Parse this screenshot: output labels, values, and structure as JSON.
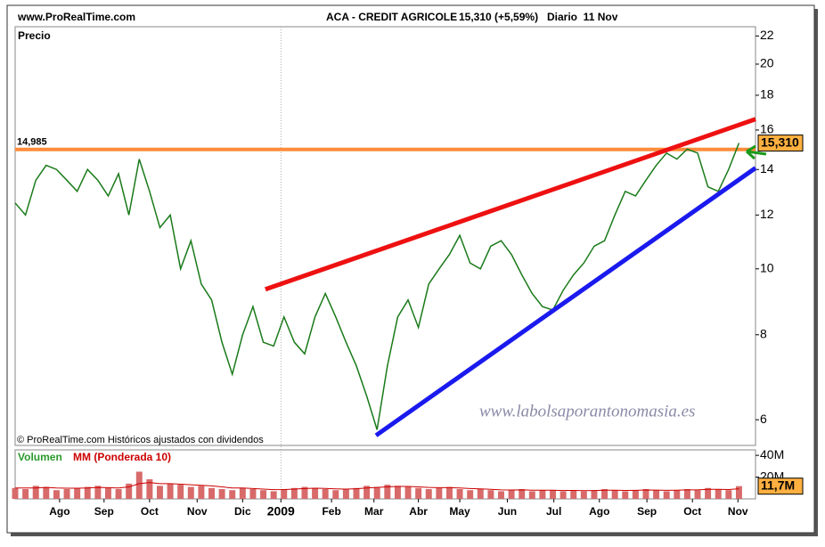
{
  "chart_data": [
    {
      "type": "line",
      "source": "www.ProRealTime.com",
      "title": "ACA - CREDIT AGRICOLE",
      "subtitle": "15,310 (+5,59%)",
      "period": "Diario  11 Nov",
      "y_label": "Precio",
      "copyright": "© ProRealTime.com Históricos ajustados con dividendos",
      "watermark": "www.labolsaporantonomasia.es",
      "log_scale": true,
      "xlim": [
        0,
        71.6
      ],
      "ylim": [
        5.5,
        22.7
      ],
      "yticks": [
        6,
        8,
        10,
        12,
        14,
        16,
        18,
        20,
        22
      ],
      "x": [
        0,
        1,
        2,
        3,
        4,
        5,
        6,
        7,
        8,
        9,
        10,
        11,
        12,
        13,
        14,
        15,
        16,
        17,
        18,
        19,
        20,
        21,
        22,
        23,
        24,
        25,
        26,
        27,
        28,
        29,
        30,
        31,
        32,
        33,
        34,
        35,
        36,
        37,
        38,
        39,
        40,
        41,
        42,
        43,
        44,
        45,
        46,
        47,
        48,
        49,
        50,
        51,
        52,
        53,
        54,
        55,
        56,
        57,
        58,
        59,
        60,
        61,
        62,
        63,
        64,
        65,
        66,
        67,
        68,
        69,
        70
      ],
      "series": [
        {
          "color": "#1a7a1a",
          "values": [
            12.5,
            12.0,
            13.5,
            14.2,
            14.0,
            13.5,
            13.0,
            14.0,
            13.5,
            12.8,
            13.8,
            12.0,
            14.5,
            13.0,
            11.5,
            12.0,
            10.0,
            11.0,
            9.5,
            9.0,
            7.8,
            7.0,
            8.0,
            8.8,
            7.8,
            7.7,
            8.5,
            7.8,
            7.5,
            8.5,
            9.2,
            8.5,
            7.8,
            7.2,
            6.5,
            5.8,
            7.2,
            8.5,
            9.0,
            8.2,
            9.5,
            10.0,
            10.5,
            11.2,
            10.2,
            10.0,
            10.8,
            11.0,
            10.5,
            9.8,
            9.2,
            8.8,
            8.7,
            9.3,
            9.8,
            10.2,
            10.8,
            11.0,
            12.0,
            13.0,
            12.8,
            13.5,
            14.2,
            14.8,
            14.5,
            15.0,
            14.8,
            13.2,
            13.0,
            14.0,
            15.31
          ]
        }
      ],
      "hlines": [
        {
          "value": 14.985,
          "label": "14,985",
          "color": "#ff8c3a"
        }
      ],
      "trendlines": [
        {
          "color": "#ee1111",
          "x": [
            24.2,
            71.6
          ],
          "y": [
            9.33,
            16.6
          ]
        },
        {
          "color": "#1a1aee",
          "x": [
            34.9,
            71.6
          ],
          "y": [
            5.69,
            14.07
          ]
        }
      ],
      "last_value_label": {
        "value": 15.31,
        "label": "15,310"
      }
    },
    {
      "type": "bar",
      "label": "Volumen",
      "xlim": [
        0,
        71.6
      ],
      "ylim": [
        0,
        45
      ],
      "yticks": [
        {
          "value": 40,
          "label": "40M"
        },
        {
          "value": 20,
          "label": "20M"
        }
      ],
      "x": [
        0,
        1,
        2,
        3,
        4,
        5,
        6,
        7,
        8,
        9,
        10,
        11,
        12,
        13,
        14,
        15,
        16,
        17,
        18,
        19,
        20,
        21,
        22,
        23,
        24,
        25,
        26,
        27,
        28,
        29,
        30,
        31,
        32,
        33,
        34,
        35,
        36,
        37,
        38,
        39,
        40,
        41,
        42,
        43,
        44,
        45,
        46,
        47,
        48,
        49,
        50,
        51,
        52,
        53,
        54,
        55,
        56,
        57,
        58,
        59,
        60,
        61,
        62,
        63,
        64,
        65,
        66,
        67,
        68,
        69,
        70
      ],
      "values": [
        10,
        9,
        12,
        11,
        8,
        9,
        10,
        11,
        12,
        10,
        9,
        14,
        25,
        18,
        12,
        14,
        13,
        11,
        12,
        10,
        9,
        8,
        10,
        9,
        8,
        7,
        9,
        10,
        11,
        10,
        9,
        8,
        9,
        10,
        12,
        11,
        13,
        12,
        11,
        10,
        9,
        10,
        11,
        9,
        8,
        9,
        8,
        7,
        8,
        9,
        7,
        8,
        8,
        7,
        8,
        7,
        8,
        9,
        8,
        7,
        8,
        9,
        8,
        7,
        8,
        9,
        8,
        10,
        9,
        8,
        11.7
      ],
      "color": "#d86a6a",
      "series": [
        {
          "name": "MM (Ponderada 10)",
          "color": "#cc0000",
          "values": [
            10,
            10,
            10,
            10.5,
            10,
            9.8,
            9.8,
            10,
            10.5,
            10.3,
            10,
            11,
            14,
            15,
            14,
            14,
            13.5,
            13,
            12.5,
            12,
            11,
            10,
            10,
            9.5,
            9,
            8.5,
            8.6,
            9,
            9.5,
            9.8,
            9.6,
            9.2,
            9,
            9.3,
            10,
            10.5,
            11,
            11.5,
            11.5,
            11,
            10.5,
            10.3,
            10.3,
            10,
            9.5,
            9.2,
            8.8,
            8.3,
            8.2,
            8.3,
            8,
            8,
            8,
            7.7,
            7.8,
            7.6,
            7.7,
            8,
            8,
            7.8,
            7.9,
            8.2,
            8.1,
            7.9,
            8,
            8.3,
            8.3,
            8.8,
            8.8,
            8.6,
            9.3
          ]
        }
      ],
      "last_value_label": {
        "value": 11.7,
        "label": "11,7M"
      },
      "xticks": [
        {
          "value": 4.3,
          "label": "Ago"
        },
        {
          "value": 8.6,
          "label": "Sep"
        },
        {
          "value": 13.0,
          "label": "Oct"
        },
        {
          "value": 17.6,
          "label": "Nov"
        },
        {
          "value": 22.0,
          "label": "Dic"
        },
        {
          "value": 25.7,
          "label": "2009"
        },
        {
          "value": 30.6,
          "label": "Feb"
        },
        {
          "value": 34.7,
          "label": "Mar"
        },
        {
          "value": 39.0,
          "label": "Abr"
        },
        {
          "value": 43.0,
          "label": "May"
        },
        {
          "value": 47.6,
          "label": "Jun"
        },
        {
          "value": 52.1,
          "label": "Jul"
        },
        {
          "value": 56.5,
          "label": "Ago"
        },
        {
          "value": 61.1,
          "label": "Sep"
        },
        {
          "value": 65.5,
          "label": "Oct"
        },
        {
          "value": 69.9,
          "label": "Nov"
        }
      ]
    }
  ]
}
